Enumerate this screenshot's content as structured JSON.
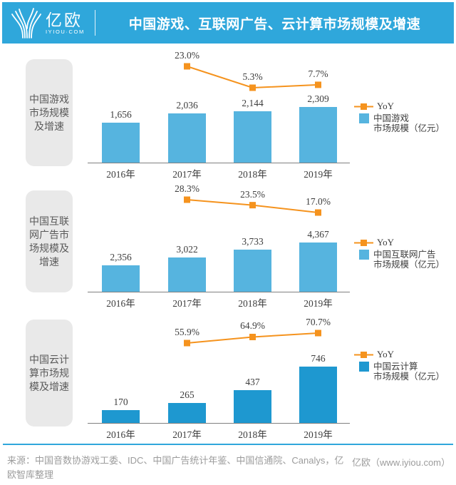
{
  "header": {
    "logo_text": "亿欧",
    "logo_subtext": "IYIOU·COM",
    "title": "中国游戏、互联网广告、云计算市场规模及增速"
  },
  "colors": {
    "brand_blue": "#2FA7DB",
    "bar_light_blue": "#56B4DF",
    "bar_deep_blue": "#1E98D0",
    "line_orange": "#F5931E",
    "axis_gray": "#808080",
    "panel_gray": "#E9E9E9"
  },
  "chart_data": [
    {
      "type": "bar",
      "panel_label": "中国游戏市场规模及增速",
      "categories": [
        "2016年",
        "2017年",
        "2018年",
        "2019年"
      ],
      "series": [
        {
          "name": "中国游戏市场规模（亿元）",
          "kind": "bar",
          "color": "#56B4DF",
          "values": [
            1656,
            2036,
            2144,
            2309
          ],
          "labels": [
            "1,656",
            "2,036",
            "2,144",
            "2,309"
          ]
        },
        {
          "name": "YoY",
          "kind": "line",
          "color": "#F5931E",
          "values": [
            null,
            23.0,
            5.3,
            7.7
          ],
          "labels": [
            "23.0%",
            "5.3%",
            "7.7%"
          ]
        }
      ],
      "legend": {
        "yoy": "YoY",
        "series_line1": "中国游戏",
        "series_line2": "市场规模（亿元）"
      }
    },
    {
      "type": "bar",
      "panel_label": "中国互联网广告市场规模及增速",
      "categories": [
        "2016年",
        "2017年",
        "2018年",
        "2019年"
      ],
      "series": [
        {
          "name": "中国互联网广告市场规模（亿元）",
          "kind": "bar",
          "color": "#56B4DF",
          "values": [
            2356,
            3022,
            3733,
            4367
          ],
          "labels": [
            "2,356",
            "3,022",
            "3,733",
            "4,367"
          ]
        },
        {
          "name": "YoY",
          "kind": "line",
          "color": "#F5931E",
          "values": [
            null,
            28.3,
            23.5,
            17.0
          ],
          "labels": [
            "28.3%",
            "23.5%",
            "17.0%"
          ]
        }
      ],
      "legend": {
        "yoy": "YoY",
        "series_line1": "中国互联网广告",
        "series_line2": "市场规模（亿元）"
      }
    },
    {
      "type": "bar",
      "panel_label": "中国云计算市场规模及增速",
      "categories": [
        "2016年",
        "2017年",
        "2018年",
        "2019年"
      ],
      "series": [
        {
          "name": "中国云计算市场规模（亿元）",
          "kind": "bar",
          "color": "#1E98D0",
          "values": [
            170,
            265,
            437,
            746
          ],
          "labels": [
            "170",
            "265",
            "437",
            "746"
          ]
        },
        {
          "name": "YoY",
          "kind": "line",
          "color": "#F5931E",
          "values": [
            null,
            55.9,
            64.9,
            70.7
          ],
          "labels": [
            "55.9%",
            "64.9%",
            "70.7%"
          ]
        }
      ],
      "legend": {
        "yoy": "YoY",
        "series_line1": "中国云计算",
        "series_line2": "市场规模（亿元）"
      }
    }
  ],
  "footer": {
    "source": "来源：中国音数协游戏工委、IDC、中国广告统计年鉴、中国信通院、Canalys，亿欧智库整理",
    "brand": "亿欧（www.iyiou.com）"
  }
}
